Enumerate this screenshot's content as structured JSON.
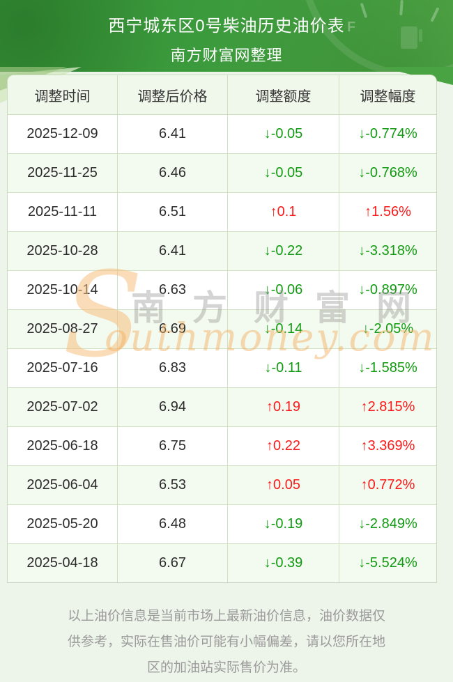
{
  "banner": {
    "title": "西宁城东区0号柴油历史油价表",
    "subtitle": "南方财富网整理",
    "gauge_label_f": "F"
  },
  "table": {
    "headers": [
      "调整时间",
      "调整后价格",
      "调整额度",
      "调整幅度"
    ],
    "rows": [
      {
        "date": "2025-12-09",
        "price": "6.41",
        "change": "↓-0.05",
        "pct": "↓-0.774%",
        "dir": "down"
      },
      {
        "date": "2025-11-25",
        "price": "6.46",
        "change": "↓-0.05",
        "pct": "↓-0.768%",
        "dir": "down"
      },
      {
        "date": "2025-11-11",
        "price": "6.51",
        "change": "↑0.1",
        "pct": "↑1.56%",
        "dir": "up"
      },
      {
        "date": "2025-10-28",
        "price": "6.41",
        "change": "↓-0.22",
        "pct": "↓-3.318%",
        "dir": "down"
      },
      {
        "date": "2025-10-14",
        "price": "6.63",
        "change": "↓-0.06",
        "pct": "↓-0.897%",
        "dir": "down"
      },
      {
        "date": "2025-08-27",
        "price": "6.69",
        "change": "↓-0.14",
        "pct": "↓-2.05%",
        "dir": "down"
      },
      {
        "date": "2025-07-16",
        "price": "6.83",
        "change": "↓-0.11",
        "pct": "↓-1.585%",
        "dir": "down"
      },
      {
        "date": "2025-07-02",
        "price": "6.94",
        "change": "↑0.19",
        "pct": "↑2.815%",
        "dir": "up"
      },
      {
        "date": "2025-06-18",
        "price": "6.75",
        "change": "↑0.22",
        "pct": "↑3.369%",
        "dir": "up"
      },
      {
        "date": "2025-06-04",
        "price": "6.53",
        "change": "↑0.05",
        "pct": "↑0.772%",
        "dir": "up"
      },
      {
        "date": "2025-05-20",
        "price": "6.48",
        "change": "↓-0.19",
        "pct": "↓-2.849%",
        "dir": "down"
      },
      {
        "date": "2025-04-18",
        "price": "6.67",
        "change": "↓-0.39",
        "pct": "↓-5.524%",
        "dir": "down"
      }
    ]
  },
  "watermark": {
    "s": "S",
    "cn": "南方财富网",
    "en": "outhmoney.com"
  },
  "footer": {
    "lines": [
      "以上油价信息是当前市场上最新油价信息，油价数据仅",
      "供参考，实际在售油价可能有小幅偏差，请以您所在地",
      "区的加油站实际售价为准。"
    ]
  },
  "colors": {
    "banner_green": "#3b9a3c",
    "up_red": "#fa1a1a",
    "down_green": "#129a12",
    "header_bg": "#f0f7eb",
    "row_alt_bg": "#f3faef",
    "border": "#cfe0c0",
    "page_bg": "#edf4e9"
  },
  "chart_data": {
    "type": "table",
    "title": "西宁城东区0号柴油历史油价表",
    "subtitle": "南方财富网整理",
    "columns": [
      "调整时间",
      "调整后价格",
      "调整额度",
      "调整幅度"
    ],
    "rows": [
      [
        "2025-12-09",
        6.41,
        -0.05,
        "-0.774%"
      ],
      [
        "2025-11-25",
        6.46,
        -0.05,
        "-0.768%"
      ],
      [
        "2025-11-11",
        6.51,
        0.1,
        "1.56%"
      ],
      [
        "2025-10-28",
        6.41,
        -0.22,
        "-3.318%"
      ],
      [
        "2025-10-14",
        6.63,
        -0.06,
        "-0.897%"
      ],
      [
        "2025-08-27",
        6.69,
        -0.14,
        "-2.05%"
      ],
      [
        "2025-07-16",
        6.83,
        -0.11,
        "-1.585%"
      ],
      [
        "2025-07-02",
        6.94,
        0.19,
        "2.815%"
      ],
      [
        "2025-06-18",
        6.75,
        0.22,
        "3.369%"
      ],
      [
        "2025-06-04",
        6.53,
        0.05,
        "0.772%"
      ],
      [
        "2025-05-20",
        6.48,
        -0.19,
        "-2.849%"
      ],
      [
        "2025-04-18",
        6.67,
        -0.39,
        "-5.524%"
      ]
    ]
  }
}
